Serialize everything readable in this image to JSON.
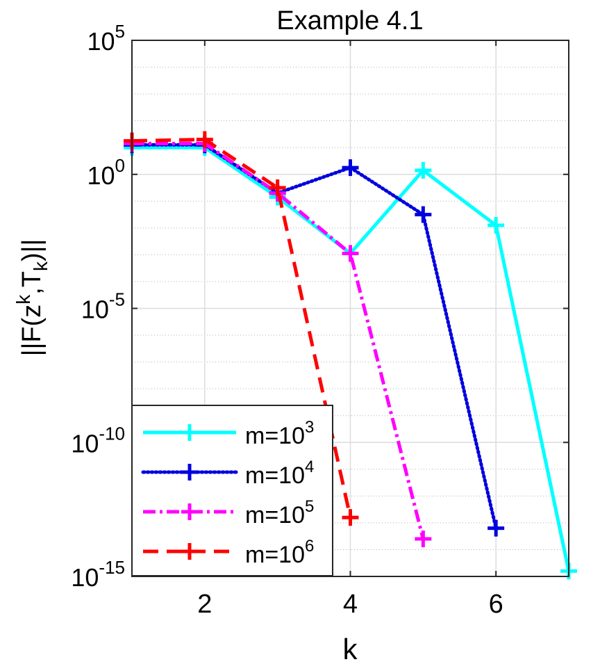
{
  "chart_data": {
    "type": "line",
    "title": "Example 4.1",
    "xlabel": "k",
    "ylabel": {
      "base": "||F(z",
      "sup": "k",
      "mid": ",T",
      "sub": "k",
      "end": ")||"
    },
    "yscale": "log",
    "xlim": [
      1,
      7
    ],
    "ylim_exp": [
      -15,
      5
    ],
    "xticks": [
      2,
      4,
      6
    ],
    "x_tick_labels": [
      "2",
      "4",
      "6"
    ],
    "yticks_exp": [
      5,
      0,
      -5,
      -10,
      -15
    ],
    "y_tick_labels": [
      {
        "base": "10",
        "exp": "5"
      },
      {
        "base": "10",
        "exp": "0"
      },
      {
        "base": "10",
        "exp": "-5"
      },
      {
        "base": "10",
        "exp": "-10"
      },
      {
        "base": "10",
        "exp": "-15"
      }
    ],
    "grid": true,
    "legend_position": "bottom-left",
    "series": [
      {
        "name": "m=10^3",
        "label": {
          "base": "m=10",
          "exp": "3"
        },
        "color": "#00ffff",
        "line_style": "solid",
        "marker": "+",
        "x": [
          1,
          2,
          3,
          4,
          5,
          6,
          7
        ],
        "y_exp": [
          1.0,
          1.0,
          -0.85,
          -2.95,
          0.15,
          -1.9,
          -14.8
        ]
      },
      {
        "name": "m=10^4",
        "label": {
          "base": "m=10",
          "exp": "4"
        },
        "color": "#0000dd",
        "line_style": "dotted",
        "marker": "+",
        "x": [
          1,
          2,
          3,
          4,
          5,
          6
        ],
        "y_exp": [
          1.1,
          1.1,
          -0.7,
          0.25,
          -1.5,
          -13.2
        ]
      },
      {
        "name": "m=10^5",
        "label": {
          "base": "m=10",
          "exp": "5"
        },
        "color": "#ff00ff",
        "line_style": "dashdot",
        "marker": "+",
        "x": [
          1,
          2,
          3,
          4,
          5
        ],
        "y_exp": [
          1.15,
          1.15,
          -0.7,
          -2.95,
          -13.6
        ]
      },
      {
        "name": "m=10^6",
        "label": {
          "base": "m=10",
          "exp": "6"
        },
        "color": "#ff0000",
        "line_style": "dashed",
        "marker": "+",
        "x": [
          1,
          2,
          3,
          4
        ],
        "y_exp": [
          1.25,
          1.3,
          -0.5,
          -12.8
        ]
      }
    ]
  }
}
